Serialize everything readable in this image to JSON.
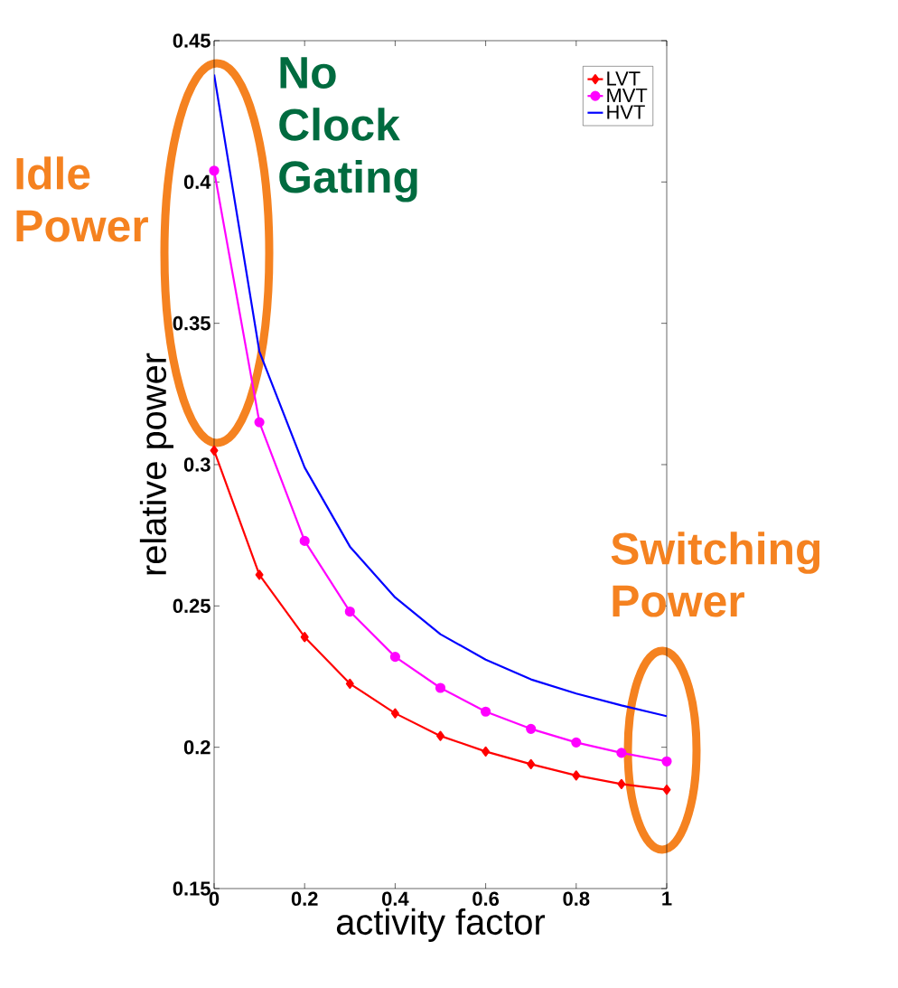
{
  "chart_data": {
    "type": "line",
    "xlabel": "activity factor",
    "ylabel": "relative power",
    "x": [
      0,
      0.1,
      0.2,
      0.3,
      0.4,
      0.5,
      0.6,
      0.7,
      0.8,
      0.9,
      1
    ],
    "series": [
      {
        "name": "LVT",
        "color": "#ff0000",
        "marker": "diamond",
        "values": [
          0.305,
          0.261,
          0.239,
          0.2225,
          0.212,
          0.204,
          0.1985,
          0.194,
          0.19,
          0.187,
          0.185
        ]
      },
      {
        "name": "MVT",
        "color": "#ff00ff",
        "marker": "circle",
        "values": [
          0.404,
          0.315,
          0.273,
          0.248,
          0.232,
          0.221,
          0.2126,
          0.2065,
          0.2017,
          0.198,
          0.195
        ]
      },
      {
        "name": "HVT",
        "color": "#0000ff",
        "marker": "none",
        "values": [
          0.438,
          0.34,
          0.299,
          0.271,
          0.253,
          0.24,
          0.231,
          0.224,
          0.219,
          0.2148,
          0.211
        ]
      }
    ],
    "xlim": [
      0,
      1
    ],
    "ylim": [
      0.15,
      0.45
    ],
    "xticks": [
      0,
      0.2,
      0.4,
      0.6,
      0.8,
      1
    ],
    "yticks": [
      0.15,
      0.2,
      0.25,
      0.3,
      0.35,
      0.4,
      0.45
    ],
    "legend": "top right",
    "grid": false,
    "line_style": "solid",
    "annotations": [
      "Idle Power",
      "No Clock Gating",
      "Switching Power"
    ]
  }
}
